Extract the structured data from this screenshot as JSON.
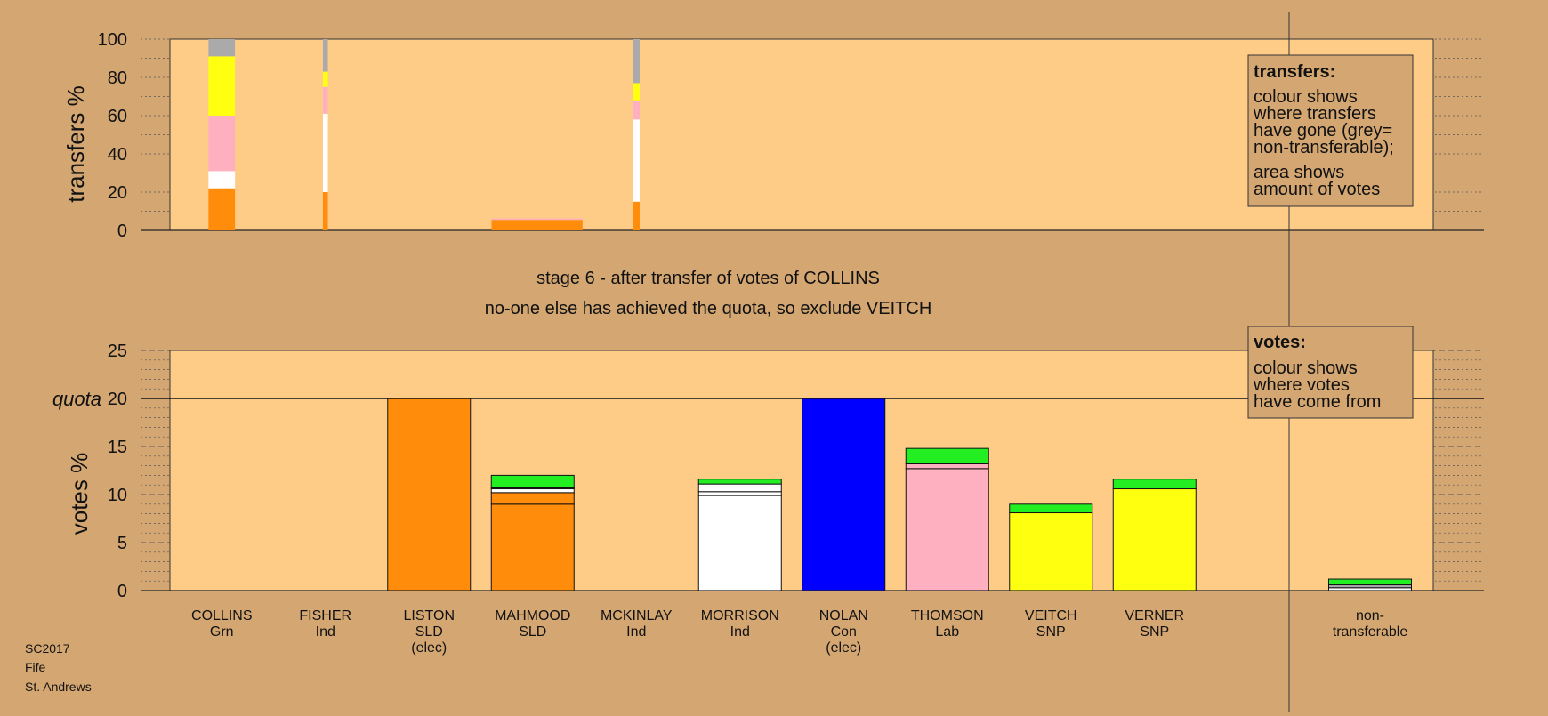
{
  "meta": {
    "line1": "SC2017",
    "line2": "Fife",
    "line3": "St. Andrews"
  },
  "stage": {
    "title": "stage 6 - after transfer of votes of COLLINS",
    "subtitle": "no-one else has achieved the quota, so exclude VEITCH"
  },
  "legend_transfers": {
    "title": "transfers:",
    "lines": [
      "colour shows",
      "where transfers",
      "have gone (grey=",
      "non-transferable);",
      "area shows",
      "amount of votes"
    ]
  },
  "legend_votes": {
    "title": "votes:",
    "lines": [
      "colour shows",
      "where votes",
      "have come from"
    ]
  },
  "colors": {
    "bg": "#D4A772",
    "panel": "#FFCC88",
    "Grn": "#22EE22",
    "SLD": "#FF8C0A",
    "Con": "#0000FF",
    "Lab": "#FFB0C0",
    "SNP": "#FFFF10",
    "Ind": "#FFFFFF",
    "nontransferable": "#AAAAAA"
  },
  "chart_data": [
    {
      "type": "bar",
      "name": "transfers",
      "ylabel": "transfers %",
      "ylim": [
        0,
        100
      ],
      "yticks": [
        0,
        20,
        40,
        60,
        80,
        100
      ],
      "grid": true,
      "transfer_bars": [
        {
          "from": "COLLINS",
          "width_share": 0.32,
          "segments": [
            {
              "to": "SLD",
              "value": 22
            },
            {
              "to": "Ind",
              "value": 9
            },
            {
              "to": "Lab",
              "value": 29
            },
            {
              "to": "SNP",
              "value": 31
            },
            {
              "to": "nontransferable",
              "value": 9
            }
          ]
        },
        {
          "from": "FISHER",
          "width_share": 0.06,
          "segments": [
            {
              "to": "SLD",
              "value": 20
            },
            {
              "to": "Ind",
              "value": 41
            },
            {
              "to": "Lab",
              "value": 14
            },
            {
              "to": "SNP",
              "value": 8
            },
            {
              "to": "nontransferable",
              "value": 17
            }
          ]
        },
        {
          "from": "MAHMOOD",
          "width_share": 1.1,
          "segments": [
            {
              "to": "SLD",
              "value": 5.5
            },
            {
              "to": "Lab",
              "value": 0.7
            }
          ]
        },
        {
          "from": "MCKINLAY",
          "width_share": 0.08,
          "segments": [
            {
              "to": "SLD",
              "value": 15
            },
            {
              "to": "Ind",
              "value": 43
            },
            {
              "to": "Lab",
              "value": 10
            },
            {
              "to": "SNP",
              "value": 9
            },
            {
              "to": "nontransferable",
              "value": 23
            }
          ]
        }
      ]
    },
    {
      "type": "bar",
      "name": "votes",
      "ylabel": "votes %",
      "ylim": [
        0,
        25
      ],
      "yticks": [
        0,
        5,
        10,
        15,
        20,
        25
      ],
      "quota": {
        "label": "quota",
        "value": 20
      },
      "grid": true,
      "categories": [
        {
          "name": "COLLINS",
          "party": "Grn",
          "note": ""
        },
        {
          "name": "FISHER",
          "party": "Ind",
          "note": ""
        },
        {
          "name": "LISTON",
          "party": "SLD",
          "note": "(elec)"
        },
        {
          "name": "MAHMOOD",
          "party": "SLD",
          "note": ""
        },
        {
          "name": "MCKINLAY",
          "party": "Ind",
          "note": ""
        },
        {
          "name": "MORRISON",
          "party": "Ind",
          "note": ""
        },
        {
          "name": "NOLAN",
          "party": "Con",
          "note": "(elec)"
        },
        {
          "name": "THOMSON",
          "party": "Lab",
          "note": ""
        },
        {
          "name": "VEITCH",
          "party": "SNP",
          "note": ""
        },
        {
          "name": "VERNER",
          "party": "SNP",
          "note": ""
        }
      ],
      "nontransferable": {
        "label1": "non-",
        "label2": "transferable"
      },
      "stacks": [
        [],
        [],
        [
          {
            "from": "SLD",
            "value": 20
          }
        ],
        [
          {
            "from": "SLD",
            "value": 9.0
          },
          {
            "from": "SLD",
            "value": 1.2
          },
          {
            "from": "Ind",
            "value": 0.4
          },
          {
            "from": "nontransferable",
            "value": 0.1
          },
          {
            "from": "Grn",
            "value": 1.3
          }
        ],
        [],
        [
          {
            "from": "Ind",
            "value": 9.9
          },
          {
            "from": "Ind",
            "value": 0.4
          },
          {
            "from": "Ind",
            "value": 0.8
          },
          {
            "from": "Grn",
            "value": 0.5
          }
        ],
        [
          {
            "from": "Con",
            "value": 20
          }
        ],
        [
          {
            "from": "Lab",
            "value": 12.7
          },
          {
            "from": "Lab",
            "value": 0.5
          },
          {
            "from": "Grn",
            "value": 1.6
          }
        ],
        [
          {
            "from": "SNP",
            "value": 8.1
          },
          {
            "from": "Grn",
            "value": 0.9
          }
        ],
        [
          {
            "from": "SNP",
            "value": 10.6
          },
          {
            "from": "Grn",
            "value": 1.0
          }
        ],
        [
          {
            "from": "Ind",
            "value": 0.3
          },
          {
            "from": "nontransferable",
            "value": 0.3
          },
          {
            "from": "Grn",
            "value": 0.6
          }
        ]
      ]
    }
  ]
}
